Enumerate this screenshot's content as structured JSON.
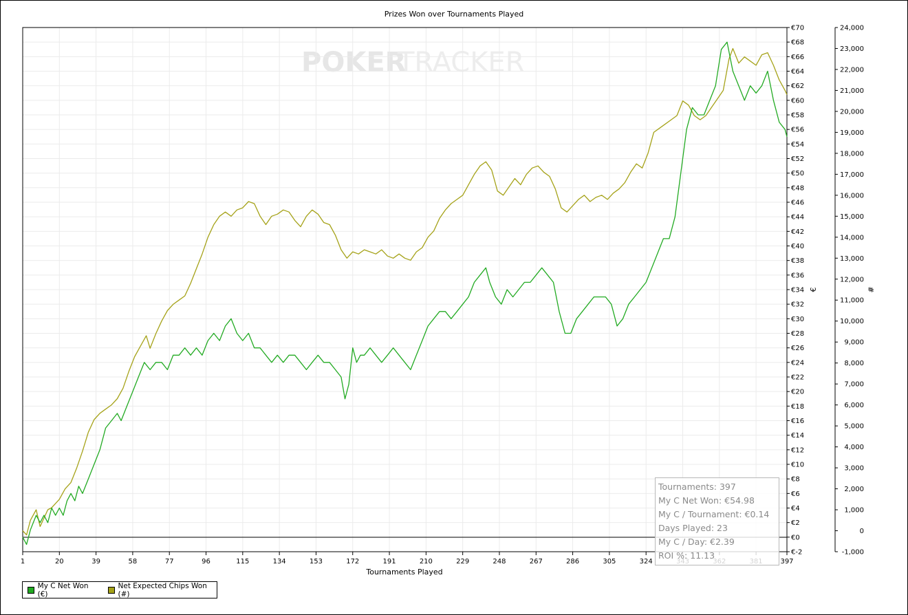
{
  "chart_data": {
    "type": "line",
    "title": "Prizes Won over Tournaments Played",
    "xlabel": "Tournaments Played",
    "ylabel_right": "€",
    "ylabel_far_right": "#",
    "watermark_left": "POKER",
    "watermark_right": "TRACKER",
    "xlim": [
      1,
      397
    ],
    "x_ticks": [
      "1",
      "20",
      "39",
      "58",
      "77",
      "96",
      "115",
      "134",
      "153",
      "172",
      "191",
      "210",
      "229",
      "248",
      "267",
      "286",
      "305",
      "324",
      "343",
      "362",
      "381",
      "397"
    ],
    "y_axis_euro": {
      "ylim": [
        -2,
        70
      ],
      "ticks": [
        "€-2",
        "€0",
        "€2",
        "€4",
        "€6",
        "€8",
        "€10",
        "€12",
        "€14",
        "€16",
        "€18",
        "€20",
        "€22",
        "€24",
        "€26",
        "€28",
        "€30",
        "€32",
        "€34",
        "€36",
        "€38",
        "€40",
        "€42",
        "€44",
        "€46",
        "€48",
        "€50",
        "€52",
        "€54",
        "€56",
        "€58",
        "€60",
        "€62",
        "€64",
        "€66",
        "€68",
        "€70"
      ]
    },
    "y_axis_chips": {
      "ylim": [
        -1000,
        24000
      ],
      "ticks": [
        "-1,000",
        "0",
        "1,000",
        "2,000",
        "3,000",
        "4,000",
        "5,000",
        "6,000",
        "7,000",
        "8,000",
        "9,000",
        "10,000",
        "11,000",
        "12,000",
        "13,000",
        "14,000",
        "15,000",
        "16,000",
        "17,000",
        "18,000",
        "19,000",
        "20,000",
        "21,000",
        "22,000",
        "23,000",
        "24,000"
      ]
    },
    "grid": true,
    "legend_position": "bottom-left",
    "series": [
      {
        "name": "My C Net Won (€)",
        "color": "#22aa22",
        "axis": "euro",
        "points": [
          [
            1,
            0
          ],
          [
            3,
            -1
          ],
          [
            5,
            1
          ],
          [
            8,
            3
          ],
          [
            10,
            2
          ],
          [
            12,
            3
          ],
          [
            14,
            2
          ],
          [
            16,
            4
          ],
          [
            18,
            3
          ],
          [
            20,
            4
          ],
          [
            22,
            3
          ],
          [
            24,
            5
          ],
          [
            26,
            6
          ],
          [
            28,
            5
          ],
          [
            30,
            7
          ],
          [
            32,
            6
          ],
          [
            35,
            8
          ],
          [
            38,
            10
          ],
          [
            41,
            12
          ],
          [
            44,
            15
          ],
          [
            47,
            16
          ],
          [
            50,
            17
          ],
          [
            52,
            16
          ],
          [
            55,
            18
          ],
          [
            58,
            20
          ],
          [
            61,
            22
          ],
          [
            64,
            24
          ],
          [
            67,
            23
          ],
          [
            70,
            24
          ],
          [
            73,
            24
          ],
          [
            76,
            23
          ],
          [
            79,
            25
          ],
          [
            82,
            25
          ],
          [
            85,
            26
          ],
          [
            88,
            25
          ],
          [
            91,
            26
          ],
          [
            94,
            25
          ],
          [
            97,
            27
          ],
          [
            100,
            28
          ],
          [
            103,
            27
          ],
          [
            106,
            29
          ],
          [
            109,
            30
          ],
          [
            112,
            28
          ],
          [
            115,
            27
          ],
          [
            118,
            28
          ],
          [
            121,
            26
          ],
          [
            124,
            26
          ],
          [
            127,
            25
          ],
          [
            130,
            24
          ],
          [
            133,
            25
          ],
          [
            136,
            24
          ],
          [
            139,
            25
          ],
          [
            142,
            25
          ],
          [
            145,
            24
          ],
          [
            148,
            23
          ],
          [
            151,
            24
          ],
          [
            154,
            25
          ],
          [
            157,
            24
          ],
          [
            160,
            24
          ],
          [
            163,
            23
          ],
          [
            166,
            22
          ],
          [
            168,
            19
          ],
          [
            170,
            21
          ],
          [
            172,
            26
          ],
          [
            174,
            24
          ],
          [
            176,
            25
          ],
          [
            178,
            25
          ],
          [
            181,
            26
          ],
          [
            184,
            25
          ],
          [
            187,
            24
          ],
          [
            190,
            25
          ],
          [
            193,
            26
          ],
          [
            196,
            25
          ],
          [
            199,
            24
          ],
          [
            202,
            23
          ],
          [
            205,
            25
          ],
          [
            208,
            27
          ],
          [
            211,
            29
          ],
          [
            214,
            30
          ],
          [
            217,
            31
          ],
          [
            220,
            31
          ],
          [
            223,
            30
          ],
          [
            226,
            31
          ],
          [
            229,
            32
          ],
          [
            232,
            33
          ],
          [
            235,
            35
          ],
          [
            238,
            36
          ],
          [
            241,
            37
          ],
          [
            243,
            35
          ],
          [
            246,
            33
          ],
          [
            249,
            32
          ],
          [
            252,
            34
          ],
          [
            255,
            33
          ],
          [
            258,
            34
          ],
          [
            261,
            35
          ],
          [
            264,
            35
          ],
          [
            267,
            36
          ],
          [
            270,
            37
          ],
          [
            273,
            36
          ],
          [
            276,
            35
          ],
          [
            279,
            31
          ],
          [
            282,
            28
          ],
          [
            285,
            28
          ],
          [
            288,
            30
          ],
          [
            291,
            31
          ],
          [
            294,
            32
          ],
          [
            297,
            33
          ],
          [
            300,
            33
          ],
          [
            303,
            33
          ],
          [
            306,
            32
          ],
          [
            309,
            29
          ],
          [
            312,
            30
          ],
          [
            315,
            32
          ],
          [
            318,
            33
          ],
          [
            321,
            34
          ],
          [
            324,
            35
          ],
          [
            327,
            37
          ],
          [
            330,
            39
          ],
          [
            333,
            41
          ],
          [
            336,
            41
          ],
          [
            339,
            44
          ],
          [
            342,
            50
          ],
          [
            345,
            56
          ],
          [
            348,
            59
          ],
          [
            351,
            58
          ],
          [
            354,
            58
          ],
          [
            357,
            60
          ],
          [
            360,
            62
          ],
          [
            363,
            67
          ],
          [
            366,
            68
          ],
          [
            369,
            64
          ],
          [
            372,
            62
          ],
          [
            375,
            60
          ],
          [
            378,
            62
          ],
          [
            381,
            61
          ],
          [
            384,
            62
          ],
          [
            387,
            64
          ],
          [
            390,
            60
          ],
          [
            393,
            57
          ],
          [
            396,
            56
          ],
          [
            397,
            55
          ]
        ]
      },
      {
        "name": "Net Expected Chips Won (#)",
        "color": "#a5a218",
        "axis": "chips",
        "points": [
          [
            1,
            0
          ],
          [
            3,
            -200
          ],
          [
            5,
            500
          ],
          [
            8,
            1000
          ],
          [
            10,
            200
          ],
          [
            12,
            600
          ],
          [
            14,
            1000
          ],
          [
            16,
            1100
          ],
          [
            18,
            1300
          ],
          [
            20,
            1500
          ],
          [
            23,
            2000
          ],
          [
            26,
            2300
          ],
          [
            29,
            3000
          ],
          [
            32,
            3800
          ],
          [
            35,
            4700
          ],
          [
            38,
            5300
          ],
          [
            41,
            5600
          ],
          [
            44,
            5800
          ],
          [
            47,
            6000
          ],
          [
            50,
            6300
          ],
          [
            53,
            6800
          ],
          [
            56,
            7600
          ],
          [
            59,
            8300
          ],
          [
            62,
            8800
          ],
          [
            65,
            9300
          ],
          [
            67,
            8700
          ],
          [
            70,
            9400
          ],
          [
            73,
            10000
          ],
          [
            76,
            10500
          ],
          [
            79,
            10800
          ],
          [
            82,
            11000
          ],
          [
            85,
            11200
          ],
          [
            88,
            11800
          ],
          [
            91,
            12500
          ],
          [
            94,
            13200
          ],
          [
            97,
            14000
          ],
          [
            100,
            14600
          ],
          [
            103,
            15000
          ],
          [
            106,
            15200
          ],
          [
            109,
            15000
          ],
          [
            112,
            15300
          ],
          [
            115,
            15400
          ],
          [
            118,
            15700
          ],
          [
            121,
            15600
          ],
          [
            124,
            15000
          ],
          [
            127,
            14600
          ],
          [
            130,
            15000
          ],
          [
            133,
            15100
          ],
          [
            136,
            15300
          ],
          [
            139,
            15200
          ],
          [
            142,
            14800
          ],
          [
            145,
            14500
          ],
          [
            148,
            15000
          ],
          [
            151,
            15300
          ],
          [
            154,
            15100
          ],
          [
            157,
            14700
          ],
          [
            160,
            14600
          ],
          [
            163,
            14100
          ],
          [
            166,
            13400
          ],
          [
            169,
            13000
          ],
          [
            172,
            13300
          ],
          [
            175,
            13200
          ],
          [
            178,
            13400
          ],
          [
            181,
            13300
          ],
          [
            184,
            13200
          ],
          [
            187,
            13400
          ],
          [
            190,
            13100
          ],
          [
            193,
            13000
          ],
          [
            196,
            13200
          ],
          [
            199,
            13000
          ],
          [
            202,
            12900
          ],
          [
            205,
            13300
          ],
          [
            208,
            13500
          ],
          [
            211,
            14000
          ],
          [
            214,
            14300
          ],
          [
            217,
            14900
          ],
          [
            220,
            15300
          ],
          [
            223,
            15600
          ],
          [
            226,
            15800
          ],
          [
            229,
            16000
          ],
          [
            232,
            16500
          ],
          [
            235,
            17000
          ],
          [
            238,
            17400
          ],
          [
            241,
            17600
          ],
          [
            244,
            17200
          ],
          [
            247,
            16200
          ],
          [
            250,
            16000
          ],
          [
            253,
            16400
          ],
          [
            256,
            16800
          ],
          [
            259,
            16500
          ],
          [
            262,
            17000
          ],
          [
            265,
            17300
          ],
          [
            268,
            17400
          ],
          [
            271,
            17100
          ],
          [
            274,
            16900
          ],
          [
            277,
            16300
          ],
          [
            280,
            15400
          ],
          [
            283,
            15200
          ],
          [
            286,
            15500
          ],
          [
            289,
            15800
          ],
          [
            292,
            16000
          ],
          [
            295,
            15700
          ],
          [
            298,
            15900
          ],
          [
            301,
            16000
          ],
          [
            304,
            15800
          ],
          [
            307,
            16100
          ],
          [
            310,
            16300
          ],
          [
            313,
            16600
          ],
          [
            316,
            17100
          ],
          [
            319,
            17500
          ],
          [
            322,
            17300
          ],
          [
            325,
            18000
          ],
          [
            328,
            19000
          ],
          [
            331,
            19200
          ],
          [
            334,
            19400
          ],
          [
            337,
            19600
          ],
          [
            340,
            19800
          ],
          [
            343,
            20500
          ],
          [
            346,
            20300
          ],
          [
            349,
            19800
          ],
          [
            352,
            19600
          ],
          [
            355,
            19800
          ],
          [
            358,
            20200
          ],
          [
            361,
            20600
          ],
          [
            364,
            21000
          ],
          [
            367,
            22500
          ],
          [
            369,
            23000
          ],
          [
            372,
            22300
          ],
          [
            375,
            22600
          ],
          [
            378,
            22400
          ],
          [
            381,
            22200
          ],
          [
            384,
            22700
          ],
          [
            387,
            22800
          ],
          [
            390,
            22200
          ],
          [
            393,
            21500
          ],
          [
            396,
            21000
          ],
          [
            397,
            20800
          ]
        ]
      }
    ]
  },
  "stats": {
    "tournaments": "Tournaments: 397",
    "net_won": "My C Net Won: €54.98",
    "per_tournament": "My C / Tournament: €0.14",
    "days_played": "Days Played: 23",
    "per_day": "My C / Day: €2.39",
    "roi": "ROI %: 11.13"
  },
  "legend": {
    "net_won_label": "My C Net Won (€)",
    "net_won_color": "#22aa22",
    "chips_label": "Net Expected Chips Won (#)",
    "chips_color": "#a5a218"
  }
}
